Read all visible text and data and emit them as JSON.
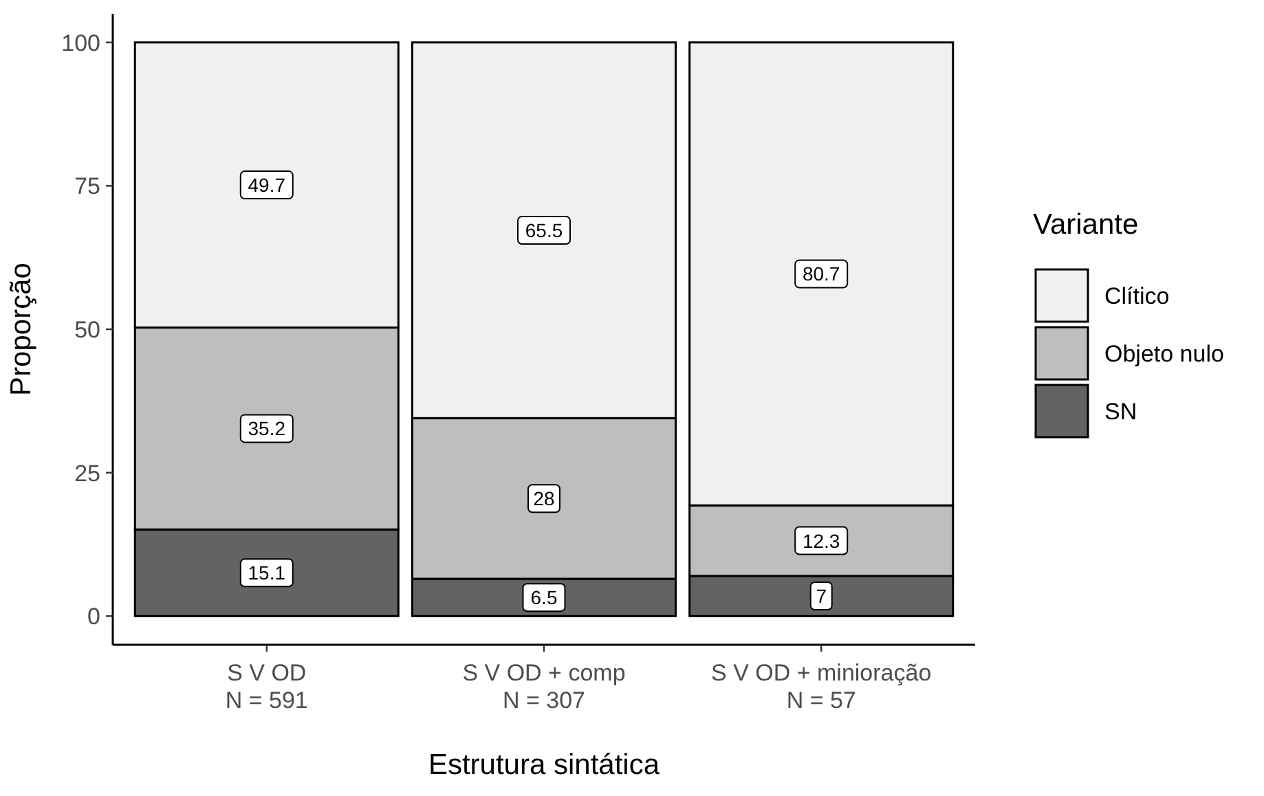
{
  "chart_data": {
    "type": "bar",
    "stacked": true,
    "xlabel": "Estrutura sintática",
    "ylabel": "Proporção",
    "legend_title": "Variante",
    "legend": "right",
    "data_labels": true,
    "grid": false,
    "categories": [
      "S V OD\nN = 591",
      "S V OD + comp\nN = 307",
      "S V OD + minioração\nN = 57"
    ],
    "ylim": [
      -5,
      105
    ],
    "yticks": [
      0,
      25,
      50,
      75,
      100
    ],
    "series": [
      {
        "name": "SN",
        "color": "#636363",
        "values": [
          15.1,
          6.5,
          7
        ]
      },
      {
        "name": "Objeto nulo",
        "color": "#bebebe",
        "values": [
          35.2,
          28,
          12.3
        ]
      },
      {
        "name": "Clítico",
        "color": "#f0f0f0",
        "values": [
          49.7,
          65.5,
          80.7
        ]
      }
    ]
  }
}
